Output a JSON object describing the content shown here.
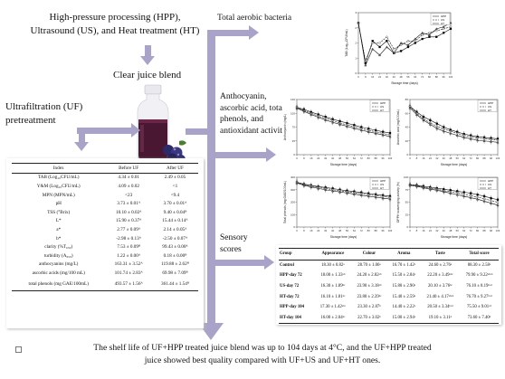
{
  "processes_title_lines": [
    "High-pressure processing (HPP),",
    "Ultrasound (US), and Heat treatment (HT)"
  ],
  "clear_juice_label": "Clear juice blend",
  "uf_label_lines": [
    "Ultrafiltration (UF)",
    "pretreatment"
  ],
  "tab_label": "Total aerobic bacteria",
  "anthocyanin_label_lines": [
    "Anthocyanin,",
    "ascorbic acid, total",
    "phenols, and",
    "antioxidant activity"
  ],
  "sensory_label_lines": [
    "Sensory",
    "scores"
  ],
  "footer_text_lines": [
    "The shelf life of UF+HPP treated juice blend was up to 104 days at 4°C, and the UF+HPP treated",
    "juice showed best quality compared with UF+US and UF+HT ones."
  ],
  "uf_table": {
    "headers": [
      "Index",
      "Before UF",
      "After UF"
    ],
    "rows": [
      [
        "TAB (Log₁₀CFU/mL)",
        "4.34 ± 0.01",
        "2.49 ± 0.05"
      ],
      [
        "Y&M (Log₁₀CFU/mL)",
        "4.09 ± 0.02",
        "<1"
      ],
      [
        "MPN (MPN/mL)",
        "<23",
        "<9.4"
      ],
      [
        "pH",
        "3.73 ± 0.01ᴬ",
        "3.70 ± 0.01ᴬ"
      ],
      [
        "TSS (°Brix)",
        "10.10 ± 0.02ᴬ",
        "9.40 ± 0.04ᴮ"
      ],
      [
        "L*",
        "15.90 ± 0.37ᴬ",
        "15.44 ± 0.14ᴬ"
      ],
      [
        "a*",
        "2.77 ± 0.09ᴬ",
        "2.14 ± 0.05ᴬ"
      ],
      [
        "b*",
        "-2.98 ± 0.13ᴬ",
        "-2.50 ± 0.07ᴬ"
      ],
      [
        "clarity (%T₆₅₀)",
        "7.53 ± 0.09ᴮ",
        "99.43 ± 0.00ᴬ"
      ],
      [
        "turbidity (A₆₅₀)",
        "1.22 ± 0.00ᴬ",
        "0.18 ± 0.00ᴮ"
      ],
      [
        "anthocyanins (mg/L)",
        "163.31 ± 3.52ᴬ",
        "119.88 ± 2.62ᴮ"
      ],
      [
        "ascorbic acids (mg/100 mL)",
        "101.74 ± 2.83ᴬ",
        "69.98 ± 7.09ᴮ"
      ],
      [
        "total phenols (mg GAE/100mL)",
        "493.57 ± 1.56ᴬ",
        "361.44 ± 1.54ᴮ"
      ]
    ]
  },
  "sensory_table": {
    "headers": [
      "Group",
      "Appearance",
      "Colour",
      "Aroma",
      "Taste",
      "Total score"
    ],
    "rows": [
      [
        "Control",
        "18.30 ± 0.82ᵃ",
        "28.70 ± 1.06ᵃ",
        "16.70 ± 1.42ᵃ",
        "24.60 ± 2.76ᵃ",
        "88.30 ± 2.58ᵃ"
      ],
      [
        "HPP-day 72",
        "18.00 ± 1.33ᵃᵇ",
        "24.20 ± 2.82ᵃᵇ",
        "15.50 ± 2.84ᵃ",
        "22.20 ± 3.49ᵃᵇᶜ",
        "79.90 ± 9.22ᵃᵇᶜᵈ"
      ],
      [
        "US-day 72",
        "16.30 ± 1.89ᵇᶜ",
        "23.90 ± 3.18ᵃᵇ",
        "15.80 ± 2.90ᵃ",
        "20.10 ± 3.76ᵇᶜ",
        "76.10 ± 8.19ᵇᶜᵈ"
      ],
      [
        "HT-day 72",
        "16.10 ± 1.81ᵇᶜ",
        "23.80 ± 2.39ᵇᶜ",
        "15.40 ± 2.59ᵃ",
        "21.40 ± 4.17ᵃᵇᶜᵈ",
        "76.70 ± 9.27ᵇᶜᵈ"
      ],
      [
        "HPP-day 104",
        "17.30 ± 1.42ᵃᵇᶜ",
        "23.30 ± 2.87ᵇ",
        "14.40 ± 2.22ᵃ",
        "20.50 ± 3.34ᵇᶜᵈ",
        "75.50 ± 9.01ᶜᵈ"
      ],
      [
        "HT-day 104",
        "16.00 ± 2.04ᵇᶜ",
        "22.70 ± 3.02ᵇ",
        "15.00 ± 2.94ᵃ",
        "19.10 ± 3.11ᵈ",
        "73.60 ± 7.40ᵈ"
      ]
    ]
  },
  "legend": [
    "HPP",
    "US",
    "HT"
  ],
  "chart_data": [
    {
      "type": "line",
      "ylabel": "TAB (Log₁₀CFU/mL)",
      "xlabel": "Storage time (days)",
      "x": [
        0,
        8,
        16,
        24,
        32,
        40,
        48,
        56,
        64,
        72,
        80,
        88,
        96,
        104
      ],
      "ylim": [
        0,
        3
      ],
      "series": [
        {
          "name": "HPP",
          "values": [
            2.5,
            0.5,
            1.6,
            1.3,
            1.6,
            1.0,
            1.1,
            1.3,
            1.5,
            1.7,
            1.8,
            1.8,
            2.0,
            2.2
          ]
        },
        {
          "name": "US",
          "values": [
            2.5,
            0.6,
            1.5,
            1.5,
            1.8,
            1.2,
            1.4,
            1.6,
            1.6,
            1.9,
            2.0,
            2.1,
            2.2,
            2.3
          ]
        },
        {
          "name": "HT",
          "values": [
            2.5,
            0.4,
            1.2,
            0.9,
            1.3,
            1.0,
            1.5,
            1.4,
            1.7,
            2.0,
            1.9,
            2.2,
            2.3,
            2.5
          ]
        }
      ]
    },
    {
      "type": "line",
      "ylabel": "Anthocyanin (mg/L)",
      "xlabel": "Storage time (days)",
      "x": [
        0,
        8,
        16,
        24,
        32,
        40,
        48,
        56,
        64,
        72,
        80,
        88,
        96,
        104
      ],
      "ylim": [
        0,
        140
      ],
      "series": [
        {
          "name": "HPP",
          "values": [
            120,
            115,
            108,
            102,
            96,
            90,
            85,
            80,
            75,
            70,
            66,
            62,
            58,
            55
          ]
        },
        {
          "name": "US",
          "values": [
            120,
            112,
            105,
            98,
            92,
            86,
            80,
            76,
            71,
            66,
            62,
            58,
            54,
            50
          ]
        },
        {
          "name": "HT",
          "values": [
            118,
            110,
            102,
            95,
            88,
            82,
            77,
            72,
            67,
            62,
            58,
            54,
            50,
            46
          ]
        }
      ]
    },
    {
      "type": "line",
      "ylabel": "Ascorbic acid (mg/100mL)",
      "xlabel": "Storage time (days)",
      "x": [
        0,
        8,
        16,
        24,
        32,
        40,
        48,
        56,
        64,
        72,
        80,
        88,
        96,
        104
      ],
      "ylim": [
        0,
        80
      ],
      "series": [
        {
          "name": "HPP",
          "values": [
            70,
            62,
            55,
            50,
            45,
            40,
            36,
            33,
            30,
            28,
            26,
            25,
            24,
            23
          ]
        },
        {
          "name": "US",
          "values": [
            70,
            60,
            52,
            46,
            41,
            37,
            34,
            31,
            28,
            26,
            24,
            23,
            22,
            21
          ]
        },
        {
          "name": "HT",
          "values": [
            68,
            58,
            50,
            44,
            38,
            34,
            31,
            28,
            25,
            23,
            21,
            20,
            19,
            18
          ]
        }
      ]
    },
    {
      "type": "line",
      "ylabel": "Total phenols (mg GAE/100mL)",
      "xlabel": "Storage time (days)",
      "x": [
        0,
        8,
        16,
        24,
        32,
        40,
        48,
        56,
        64,
        72,
        80,
        88,
        96,
        104
      ],
      "ylim": [
        0,
        400
      ],
      "series": [
        {
          "name": "HPP",
          "values": [
            360,
            345,
            335,
            325,
            318,
            310,
            300,
            292,
            285,
            278,
            270,
            262,
            255,
            248
          ]
        },
        {
          "name": "US",
          "values": [
            360,
            340,
            330,
            318,
            310,
            300,
            292,
            284,
            276,
            268,
            260,
            252,
            245,
            238
          ]
        },
        {
          "name": "HT",
          "values": [
            355,
            335,
            322,
            310,
            300,
            290,
            282,
            274,
            265,
            256,
            248,
            240,
            232,
            225
          ]
        }
      ]
    },
    {
      "type": "line",
      "ylabel": "DPPH scavenging activity (%)",
      "xlabel": "Storage time (days)",
      "x": [
        0,
        8,
        16,
        24,
        32,
        40,
        48,
        56,
        64,
        72,
        80,
        88,
        96,
        104
      ],
      "ylim": [
        0,
        100
      ],
      "series": [
        {
          "name": "HPP",
          "values": [
            85,
            84,
            82,
            80,
            78,
            76,
            74,
            72,
            70,
            68,
            65,
            62,
            58,
            55
          ]
        },
        {
          "name": "US",
          "values": [
            85,
            83,
            80,
            78,
            76,
            73,
            71,
            69,
            66,
            63,
            60,
            57,
            53,
            50
          ]
        },
        {
          "name": "HT",
          "values": [
            84,
            82,
            79,
            76,
            74,
            71,
            68,
            65,
            62,
            59,
            56,
            52,
            48,
            44
          ]
        }
      ]
    }
  ]
}
